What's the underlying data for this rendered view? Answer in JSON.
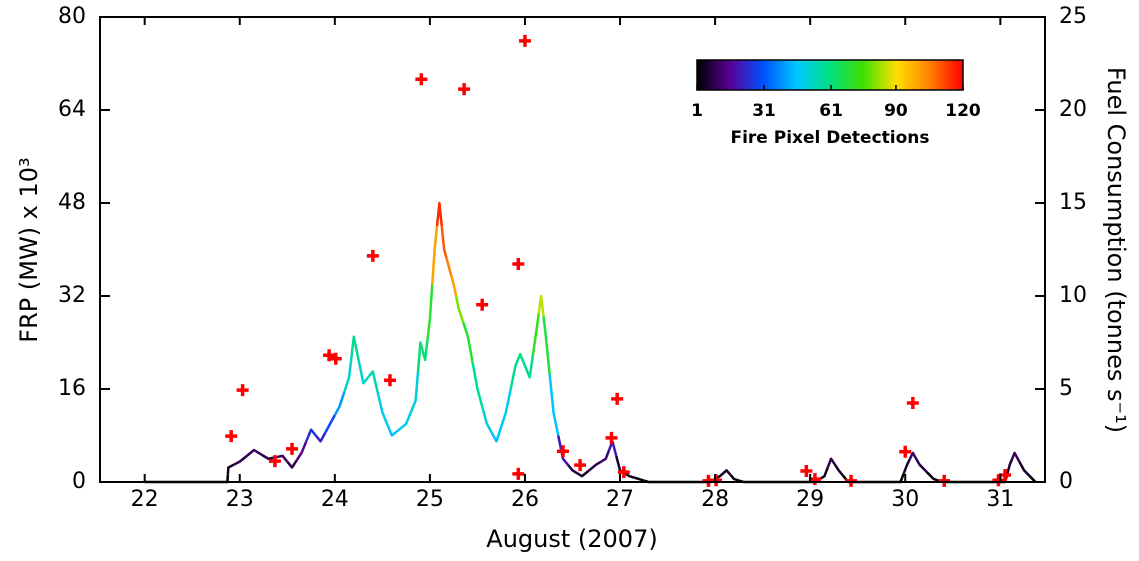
{
  "chart_data": {
    "type": "line",
    "xlabel": "August (2007)",
    "ylabel": "FRP (MW) x 10³",
    "y2label": "Fuel Consumption (tonnes s⁻¹)",
    "xlim": [
      21.53,
      31.47
    ],
    "xticks": [
      22,
      23,
      24,
      25,
      26,
      27,
      28,
      29,
      30,
      31
    ],
    "ylim": [
      0,
      80
    ],
    "yticks": [
      0,
      16,
      32,
      48,
      64,
      80
    ],
    "y2lim": [
      0,
      25
    ],
    "y2ticks": [
      0,
      5,
      10,
      15,
      20,
      25
    ],
    "series": [
      {
        "type": "line",
        "x": [
          22.0,
          22.87,
          22.88,
          23.0,
          23.15,
          23.3,
          23.45,
          23.55,
          23.65,
          23.75,
          23.85,
          23.95,
          24.05,
          24.15,
          24.2,
          24.3,
          24.4,
          24.5,
          24.6,
          24.75,
          24.85,
          24.9,
          24.95,
          25.0,
          25.05,
          25.1,
          25.15,
          25.2,
          25.25,
          25.3,
          25.4,
          25.5,
          25.6,
          25.7,
          25.8,
          25.9,
          25.95,
          26.05,
          26.12,
          26.17,
          26.22,
          26.3,
          26.4,
          26.5,
          26.6,
          26.75,
          26.85,
          26.92,
          27.0,
          27.1,
          27.2,
          27.3,
          27.95,
          28.05,
          28.12,
          28.2,
          28.3,
          29.05,
          29.15,
          29.22,
          29.3,
          29.4,
          29.95,
          30.02,
          30.08,
          30.15,
          30.3,
          30.4,
          31.05,
          31.1,
          31.15,
          31.25,
          31.37
        ],
        "values": [
          0,
          0,
          2.5,
          3.5,
          5.5,
          4,
          4.5,
          2.5,
          5,
          9,
          7,
          10,
          13,
          18,
          25,
          17,
          19,
          12,
          8,
          10,
          14,
          24,
          21,
          28,
          40,
          48,
          40,
          37,
          34,
          30,
          25,
          16,
          10,
          7,
          12,
          20,
          22,
          18,
          26,
          32,
          25,
          12,
          4,
          2,
          1,
          3,
          4,
          7,
          2,
          1,
          0.5,
          0,
          0,
          1,
          2,
          0.5,
          0,
          0,
          1,
          4,
          2,
          0,
          0,
          3,
          5,
          3,
          0.5,
          0,
          0,
          3,
          5,
          2,
          0
        ],
        "detections": [
          1,
          1,
          5,
          8,
          10,
          8,
          10,
          8,
          15,
          25,
          22,
          30,
          40,
          52,
          58,
          52,
          55,
          48,
          45,
          48,
          50,
          62,
          62,
          70,
          100,
          115,
          110,
          105,
          100,
          80,
          70,
          58,
          50,
          45,
          48,
          58,
          60,
          58,
          72,
          85,
          68,
          45,
          20,
          8,
          5,
          8,
          12,
          20,
          6,
          3,
          2,
          1,
          1,
          3,
          5,
          2,
          1,
          1,
          3,
          8,
          5,
          1,
          1,
          6,
          10,
          8,
          2,
          1,
          1,
          6,
          10,
          5,
          1
        ]
      },
      {
        "type": "scatter",
        "color": "#ff0000",
        "x": [
          22.91,
          23.03,
          23.37,
          23.55,
          23.94,
          24.01,
          24.4,
          24.58,
          24.91,
          25.36,
          25.55,
          25.93,
          25.93,
          26.0,
          26.4,
          26.58,
          26.91,
          26.97,
          27.04,
          27.93,
          28.01,
          28.96,
          29.05,
          29.43,
          30.0,
          30.08,
          30.41,
          30.98,
          31.05
        ],
        "values": [
          7.9,
          15.8,
          3.6,
          5.7,
          21.8,
          21.2,
          38.9,
          17.5,
          69.3,
          67.6,
          30.5,
          37.5,
          1.4,
          75.9,
          5.3,
          2.9,
          7.6,
          14.3,
          1.7,
          0.2,
          0.3,
          1.9,
          0.5,
          0.2,
          5.2,
          13.6,
          0.2,
          0.3,
          1.2
        ]
      }
    ],
    "colorbar": {
      "label": "Fire Pixel Detections",
      "lim": [
        1,
        120
      ],
      "ticks": [
        1,
        31,
        61,
        90,
        120
      ],
      "colors": [
        "#000000",
        "#5a0096",
        "#0050ff",
        "#00c8ff",
        "#00e080",
        "#40e000",
        "#ffe000",
        "#ff8000",
        "#ff0000"
      ]
    }
  }
}
